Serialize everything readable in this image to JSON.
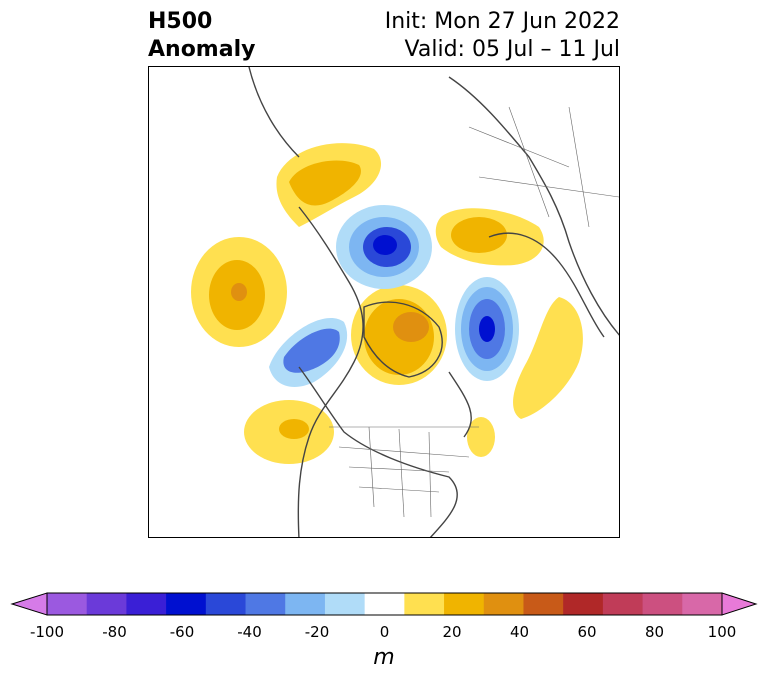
{
  "title": {
    "field": "H500",
    "subfield": "Anomaly",
    "init": "Init: Mon 27 Jun 2022",
    "valid": "Valid: 05 Jul – 11 Jul"
  },
  "colorbar": {
    "unit": "m",
    "ticks": [
      "-100",
      "-80",
      "-60",
      "-40",
      "-20",
      "0",
      "20",
      "40",
      "60",
      "80",
      "100"
    ],
    "colors": [
      "#d67be8",
      "#9b59e0",
      "#6b3ad9",
      "#3a1fd6",
      "#0010d0",
      "#2a48d8",
      "#4f78e4",
      "#7db6f2",
      "#b0dcf8",
      "#ffffff",
      "#ffe050",
      "#f0b400",
      "#e09010",
      "#c85a18",
      "#b02828",
      "#c03c58",
      "#cc5080",
      "#d868a8",
      "#e87ad8"
    ]
  }
}
